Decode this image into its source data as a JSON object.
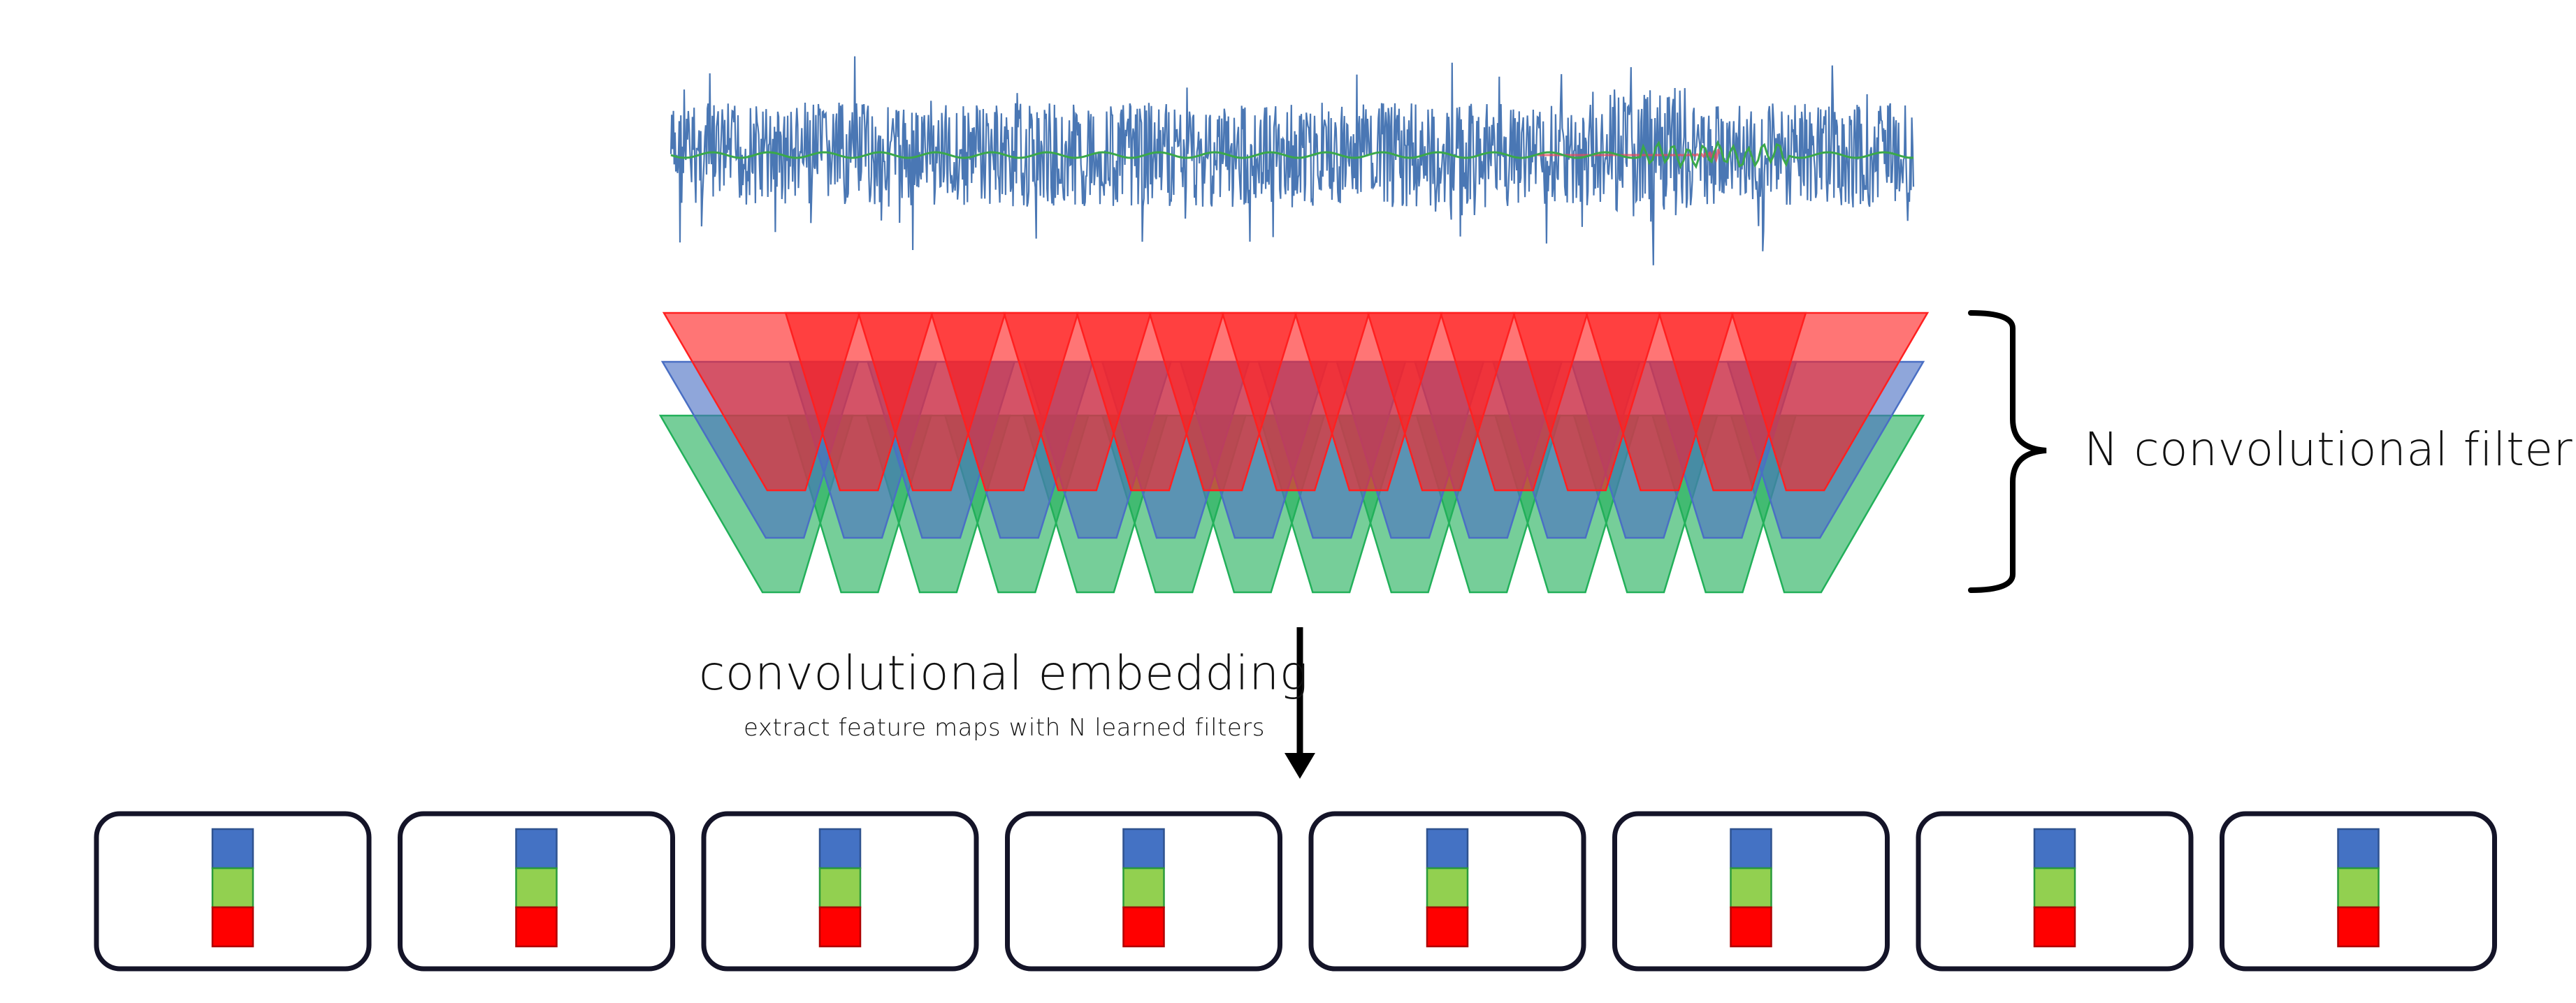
{
  "labels": {
    "filters": "N convolutional filters",
    "embedding_title": "convolutional embedding",
    "embedding_subtitle": "extract feature maps with N learned filters"
  },
  "colors": {
    "signal": "#4a77b4",
    "overlay_green": "#3aa84a",
    "overlay_red": "#e64a5a",
    "filter_red": "#ff2020",
    "filter_blue": "#4a6fc4",
    "filter_green": "#22b05a",
    "feature_blue": "#4472c4",
    "feature_green": "#92d050",
    "feature_red": "#ff0000",
    "box_border": "#141428",
    "arrow": "#000000"
  },
  "icons": {
    "arrow": "down-arrow-icon",
    "brace": "right-curly-brace"
  },
  "embedding_vectors": [
    {
      "name": "vector-1",
      "stack": [
        "blue",
        "green",
        "red"
      ]
    },
    {
      "name": "vector-2",
      "stack": [
        "blue",
        "green",
        "red"
      ]
    },
    {
      "name": "vector-3",
      "stack": [
        "blue",
        "green",
        "red"
      ]
    },
    {
      "name": "vector-4",
      "stack": [
        "blue",
        "green",
        "red"
      ]
    },
    {
      "name": "vector-5",
      "stack": [
        "blue",
        "green",
        "red"
      ]
    },
    {
      "name": "vector-6",
      "stack": [
        "blue",
        "green",
        "red"
      ]
    },
    {
      "name": "vector-7",
      "stack": [
        "blue",
        "green",
        "red"
      ]
    },
    {
      "name": "vector-8",
      "stack": [
        "blue",
        "green",
        "red"
      ]
    }
  ]
}
